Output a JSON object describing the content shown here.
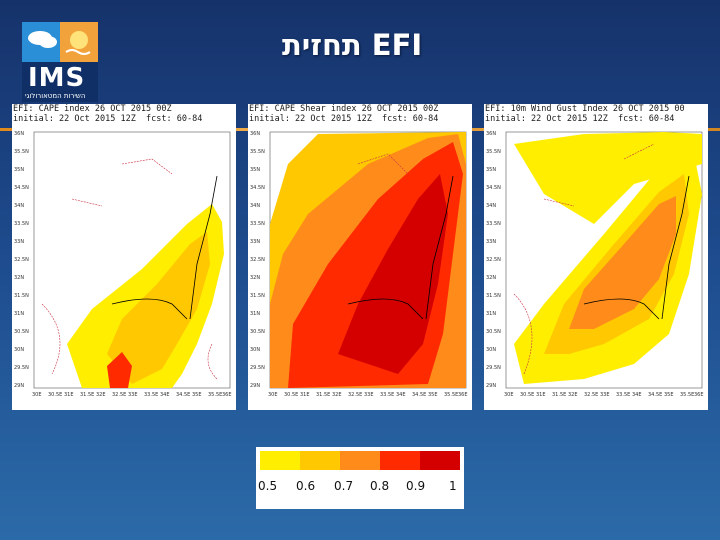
{
  "header": {
    "logo_text": "IMS",
    "logo_subtitle": "השירות המטאורולוגי",
    "title": "תחזית EFI"
  },
  "panels": [
    {
      "line1": "EFI: CAPE index 26 OCT 2015 00Z",
      "line2": "initial: 22 Oct 2015 12Z  fcst: 60-84"
    },
    {
      "line1": "EFI: CAPE Shear index 26 OCT 2015 00Z",
      "line2": "initial: 22 Oct 2015 12Z  fcst: 60-84"
    },
    {
      "line1": "EFI: 10m Wind Gust Index 26 OCT 2015 00",
      "line2": "initial: 22 Oct 2015 12Z  fcst: 60-84"
    }
  ],
  "axes": {
    "lat_ticks": [
      "36N",
      "35.5N",
      "35N",
      "34.5N",
      "34N",
      "33.5N",
      "33N",
      "32.5N",
      "32N",
      "31.5N",
      "31N",
      "30.5N",
      "30N",
      "29.5N",
      "29N"
    ],
    "lon_ticks": [
      "30E",
      "30.5E",
      "31E",
      "31.5E",
      "32E",
      "32.5E",
      "33E",
      "33.5E",
      "34E",
      "34.5E",
      "35E",
      "35.5E",
      "36E"
    ]
  },
  "legend": {
    "labels": [
      "0.5",
      "0.6",
      "0.7",
      "0.8",
      "0.9",
      "1"
    ],
    "colors": [
      "#ffee00",
      "#ffc800",
      "#ff8c1a",
      "#ff2a00",
      "#d40000"
    ]
  },
  "colors": {
    "background": "#1d4a8c",
    "rule": "#e8a040",
    "coastline": "#000000",
    "contour": "#cc3344"
  }
}
